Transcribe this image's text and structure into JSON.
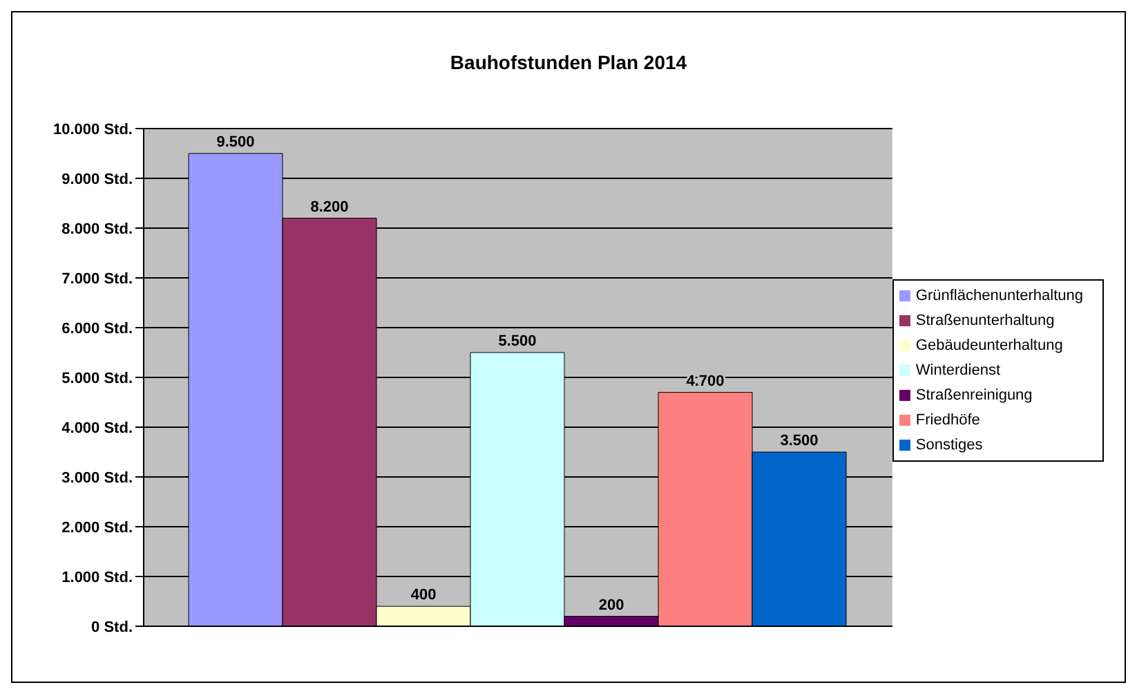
{
  "chart_data": {
    "type": "bar",
    "title": "Bauhofstunden Plan 2014",
    "categories": [
      null
    ],
    "series": [
      {
        "name": "Grünflächenunterhaltung",
        "color": "#9999ff",
        "values": [
          9500
        ],
        "value_labels": [
          "9.500"
        ]
      },
      {
        "name": "Straßenunterhaltung",
        "color": "#993366",
        "values": [
          8200
        ],
        "value_labels": [
          "8.200"
        ]
      },
      {
        "name": "Gebäudeunterhaltung",
        "color": "#ffffcc",
        "values": [
          400
        ],
        "value_labels": [
          "400"
        ]
      },
      {
        "name": "Winterdienst",
        "color": "#ccffff",
        "values": [
          5500
        ],
        "value_labels": [
          "5.500"
        ]
      },
      {
        "name": "Straßenreinigung",
        "color": "#660066",
        "values": [
          200
        ],
        "value_labels": [
          "200"
        ]
      },
      {
        "name": "Friedhöfe",
        "color": "#ff8080",
        "values": [
          4700
        ],
        "value_labels": [
          "4.700"
        ]
      },
      {
        "name": "Sonstiges",
        "color": "#0066cc",
        "values": [
          3500
        ],
        "value_labels": [
          "3.500"
        ]
      }
    ],
    "ylim": [
      0,
      10000
    ],
    "yticks": [
      {
        "value": 0,
        "label": "0 Std."
      },
      {
        "value": 1000,
        "label": "1.000 Std."
      },
      {
        "value": 2000,
        "label": "2.000 Std."
      },
      {
        "value": 3000,
        "label": "3.000 Std."
      },
      {
        "value": 4000,
        "label": "4.000 Std."
      },
      {
        "value": 5000,
        "label": "5.000 Std."
      },
      {
        "value": 6000,
        "label": "6.000 Std."
      },
      {
        "value": 7000,
        "label": "7.000 Std."
      },
      {
        "value": 8000,
        "label": "8.000 Std."
      },
      {
        "value": 9000,
        "label": "9.000 Std."
      },
      {
        "value": 10000,
        "label": "10.000 Std."
      }
    ],
    "grid": "y",
    "legend": "right"
  }
}
